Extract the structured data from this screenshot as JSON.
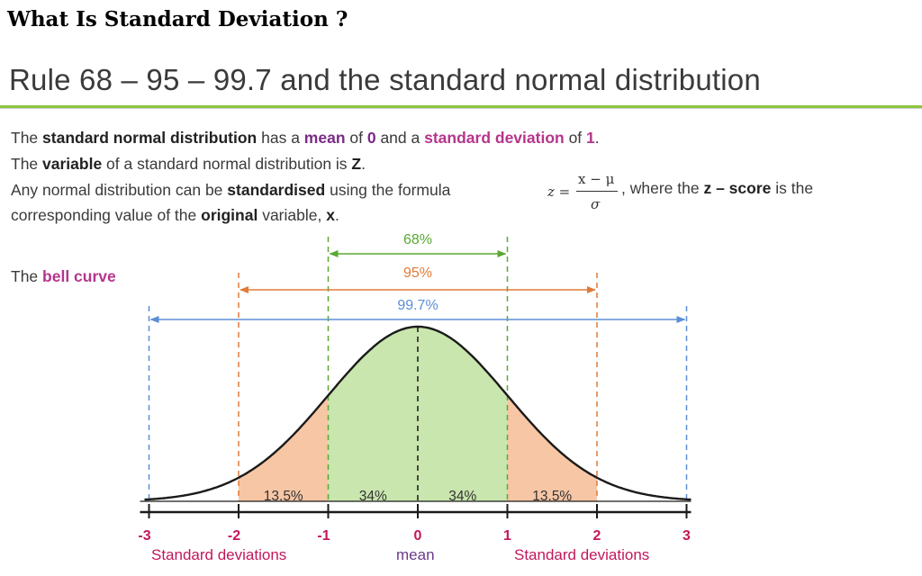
{
  "header": {
    "title": "What Is Standard Deviation ?"
  },
  "subtitle": "Rule 68 – 95 – 99.7 and the standard  normal distribution",
  "text": {
    "l1": {
      "a": "The ",
      "b": "standard normal distribution",
      "c": " has a ",
      "d": "mean",
      "e": " of ",
      "f": "0",
      "g": " and a ",
      "h": "standard deviation",
      "i": " of ",
      "j": "1",
      "k": "."
    },
    "l2": {
      "a": "The ",
      "b": "variable",
      "c": " of a standard normal distribution is ",
      "d": "Z",
      "e": "."
    },
    "l3": {
      "a": "Any normal distribution can be ",
      "b": "standardised",
      "c": " using the formula"
    },
    "l4": {
      "a": "corresponding value of the ",
      "b": "original",
      "c": " variable, ",
      "d": "x",
      "e": "."
    },
    "after_formula": {
      "a": ", where the ",
      "b": "z – score",
      "c": " is the"
    }
  },
  "formula": {
    "lhs": "z =",
    "numerator": "x − μ",
    "denominator": "σ"
  },
  "bell_label": {
    "a": "The ",
    "b": "bell curve"
  },
  "diagram": {
    "spans": [
      {
        "label": "68%",
        "from": -1,
        "to": 1,
        "color": "#5aa832"
      },
      {
        "label": "95%",
        "from": -2,
        "to": 2,
        "color": "#e07b39"
      },
      {
        "label": "99.7%",
        "from": -3,
        "to": 3,
        "color": "#5b8fd6"
      }
    ],
    "regions": [
      {
        "label": "13.5%",
        "center": -1.5
      },
      {
        "label": "34%",
        "center": -0.5
      },
      {
        "label": "34%",
        "center": 0.5
      },
      {
        "label": "13.5%",
        "center": 1.5
      }
    ],
    "ticks": [
      "-3",
      "-2",
      "-1",
      "0",
      "1",
      "2",
      "3"
    ],
    "footer": {
      "left": "Standard deviations",
      "center": "mean",
      "right": "Standard deviations"
    },
    "colors": {
      "inner_fill": "#c9e6ae",
      "outer_fill": "#f7c6a5",
      "curve": "#1a1a1a",
      "tick_label": "#c2185b",
      "footer": "#c2185b",
      "mean": "#6a3a8c"
    }
  }
}
